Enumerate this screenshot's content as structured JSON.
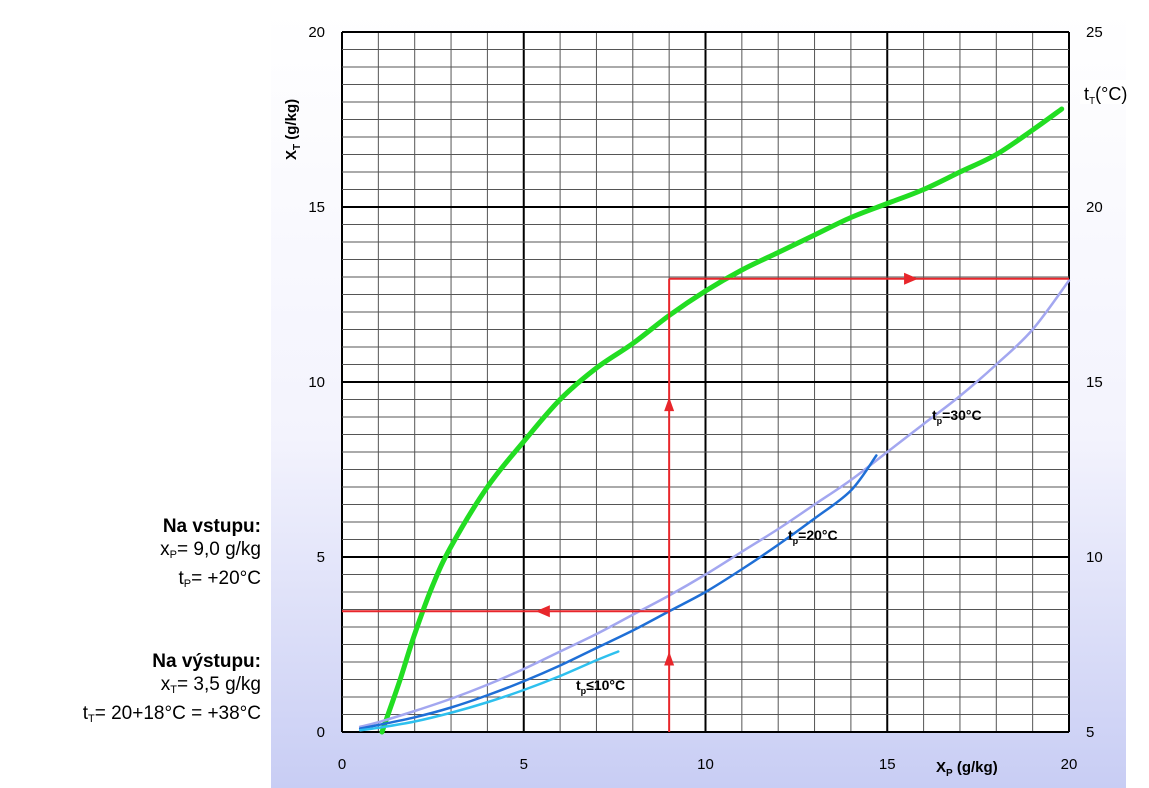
{
  "chart_data": {
    "type": "line",
    "xlabel": "X",
    "xlabel_sub": "P",
    "xlabel_unit": "(g/kg)",
    "ylabel": "X",
    "ylabel_sub": "T",
    "ylabel_unit": "(g/kg)",
    "y2label": "t",
    "y2label_sub": "T",
    "y2label_unit": "(°C)",
    "xlim": [
      0,
      20
    ],
    "ylim": [
      0,
      20
    ],
    "y2lim": [
      5,
      25
    ],
    "x_ticks": [
      "0",
      "5",
      "10",
      "15",
      "20"
    ],
    "y_ticks": [
      "0",
      "5",
      "10",
      "15",
      "20"
    ],
    "y2_ticks": [
      "5",
      "10",
      "15",
      "20",
      "25"
    ],
    "grid": true,
    "series": [
      {
        "color": "#22dd22",
        "axis": "y2",
        "x": [
          1.1,
          1.3,
          1.6,
          2.0,
          2.5,
          3.0,
          4.0,
          5.0,
          6.0,
          7.0,
          8.0,
          9.0,
          10.0,
          11.0,
          12.0,
          13.0,
          14.0,
          15.0,
          16.0,
          17.0,
          18.0,
          19.0,
          19.8
        ],
        "y": [
          5.0,
          5.6,
          6.5,
          7.8,
          9.2,
          10.3,
          12.0,
          13.3,
          14.5,
          15.4,
          16.1,
          16.9,
          17.6,
          18.2,
          18.7,
          19.2,
          19.7,
          20.1,
          20.5,
          21.0,
          21.5,
          22.2,
          22.8
        ]
      },
      {
        "name": "tp=30°C",
        "label_t": "t",
        "label_sub": "p",
        "label_rest": "=30°C",
        "color": "#a3a7f0",
        "axis": "y",
        "x": [
          0.5,
          1.0,
          2.0,
          3.0,
          4.0,
          5.0,
          6.0,
          7.0,
          8.0,
          9.0,
          10.0,
          11.0,
          12.0,
          13.0,
          14.0,
          15.0,
          16.0,
          17.0,
          18.0,
          19.0,
          20.0
        ],
        "y": [
          0.15,
          0.28,
          0.6,
          0.95,
          1.35,
          1.8,
          2.3,
          2.8,
          3.35,
          3.9,
          4.5,
          5.15,
          5.8,
          6.5,
          7.2,
          8.0,
          8.8,
          9.6,
          10.5,
          11.5,
          12.9
        ]
      },
      {
        "name": "tp=20°C",
        "label_t": "t",
        "label_sub": "p",
        "label_rest": "=20°C",
        "color": "#1f6fd6",
        "axis": "y",
        "x": [
          0.5,
          1.0,
          2.0,
          3.0,
          4.0,
          5.0,
          6.0,
          7.0,
          8.0,
          9.0,
          10.0,
          11.0,
          12.0,
          13.0,
          14.0,
          14.7
        ],
        "y": [
          0.1,
          0.2,
          0.42,
          0.7,
          1.05,
          1.45,
          1.9,
          2.4,
          2.9,
          3.45,
          4.0,
          4.65,
          5.35,
          6.1,
          6.9,
          7.9
        ]
      },
      {
        "name": "tp≤10°C",
        "label_t": "t",
        "label_sub": "p",
        "label_rest": "≤10°C",
        "color": "#2ec0ee",
        "axis": "y",
        "x": [
          0.5,
          1.0,
          2.0,
          3.0,
          4.0,
          5.0,
          6.0,
          7.0,
          7.6
        ],
        "y": [
          0.05,
          0.12,
          0.3,
          0.55,
          0.85,
          1.2,
          1.6,
          2.05,
          2.3
        ]
      }
    ],
    "example_path": {
      "color": "#e8262b",
      "x_in": 9.0,
      "y_from_green": 12.95,
      "y_out": 3.45
    }
  },
  "inlet": {
    "heading": "Na vstupu:",
    "line1_var": "x",
    "line1_sub": "P",
    "line1_rest": "= 9,0 g/kg",
    "line2_var": "t",
    "line2_sub": "P",
    "line2_rest": "= +20°C"
  },
  "outlet": {
    "heading": "Na výstupu:",
    "line1_var": "x",
    "line1_sub": "T",
    "line1_rest": "= 3,5 g/kg",
    "line2_var": "t",
    "line2_sub": "T",
    "line2_rest": "= 20+18°C = +38°C"
  }
}
